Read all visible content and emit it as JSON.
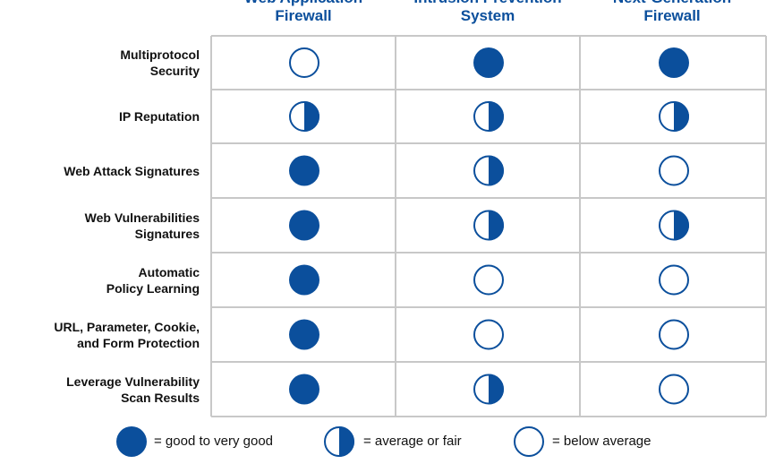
{
  "chart_data": {
    "type": "table",
    "columns": [
      {
        "line1": "Web Application",
        "line2": "Firewall"
      },
      {
        "line1": "Intrusion Prevention",
        "line2": "System"
      },
      {
        "line1": "Next-Generation",
        "line2": "Firewall"
      }
    ],
    "rows": [
      {
        "label": "Multiprotocol\nSecurity",
        "ratings": [
          "below",
          "good",
          "good"
        ]
      },
      {
        "label": "IP Reputation",
        "ratings": [
          "average",
          "average",
          "average"
        ]
      },
      {
        "label": "Web Attack Signatures",
        "ratings": [
          "good",
          "average",
          "below"
        ]
      },
      {
        "label": "Web Vulnerabilities\nSignatures",
        "ratings": [
          "good",
          "average",
          "average"
        ]
      },
      {
        "label": "Automatic\nPolicy Learning",
        "ratings": [
          "good",
          "below",
          "below"
        ]
      },
      {
        "label": "URL, Parameter, Cookie,\nand Form Protection",
        "ratings": [
          "good",
          "below",
          "below"
        ]
      },
      {
        "label": "Leverage Vulnerability\nScan Results",
        "ratings": [
          "good",
          "average",
          "below"
        ]
      }
    ],
    "legend": [
      {
        "key": "good",
        "text": "= good to very good"
      },
      {
        "key": "average",
        "text": "= average or fair"
      },
      {
        "key": "below",
        "text": "= below average"
      }
    ]
  },
  "colors": {
    "accent": "#0b4f9c",
    "grid_line": "#c8c8c8"
  }
}
